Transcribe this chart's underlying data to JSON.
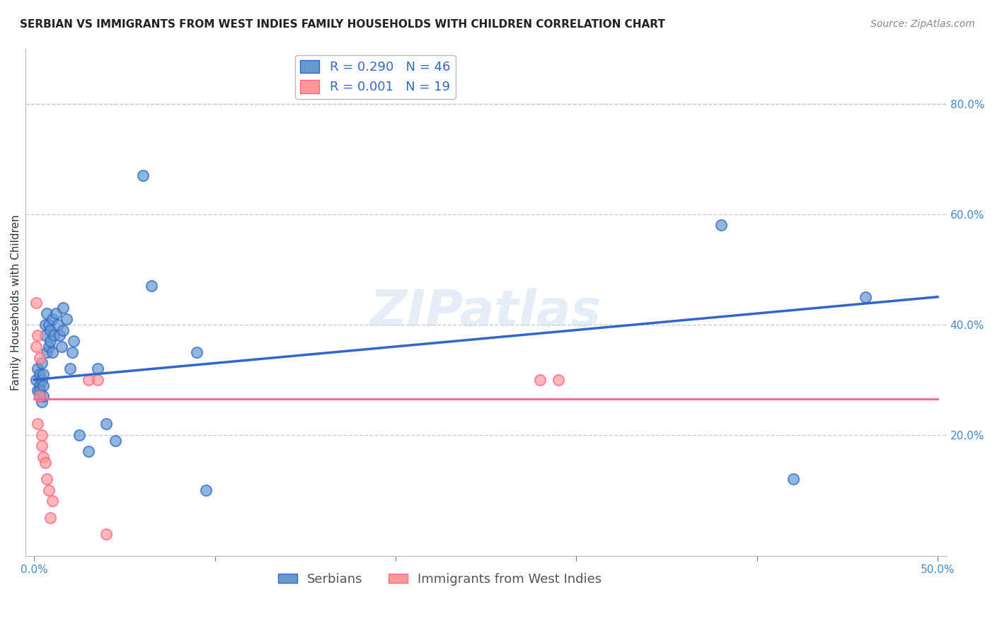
{
  "title": "SERBIAN VS IMMIGRANTS FROM WEST INDIES FAMILY HOUSEHOLDS WITH CHILDREN CORRELATION CHART",
  "source": "Source: ZipAtlas.com",
  "xlabel": "",
  "ylabel": "Family Households with Children",
  "xlim": [
    0.0,
    0.5
  ],
  "ylim": [
    -0.02,
    0.9
  ],
  "xticks": [
    0.0,
    0.1,
    0.2,
    0.3,
    0.4,
    0.5
  ],
  "xtick_labels": [
    "0.0%",
    "",
    "",
    "",
    "",
    "50.0%"
  ],
  "ytick_labels_right": [
    "20.0%",
    "40.0%",
    "60.0%",
    "80.0%"
  ],
  "yticks_right": [
    0.2,
    0.4,
    0.6,
    0.8
  ],
  "serbian_R": 0.29,
  "serbian_N": 46,
  "west_indies_R": 0.001,
  "west_indies_N": 19,
  "serbian_color": "#6699CC",
  "west_indies_color": "#FF9999",
  "serbian_line_color": "#3366CC",
  "west_indies_line_color": "#FF6688",
  "background_color": "#FFFFFF",
  "watermark": "ZIPatlas",
  "serbian_x": [
    0.001,
    0.002,
    0.002,
    0.003,
    0.003,
    0.003,
    0.003,
    0.004,
    0.004,
    0.004,
    0.005,
    0.005,
    0.005,
    0.006,
    0.006,
    0.007,
    0.007,
    0.008,
    0.008,
    0.009,
    0.009,
    0.01,
    0.01,
    0.011,
    0.012,
    0.013,
    0.014,
    0.015,
    0.016,
    0.016,
    0.018,
    0.02,
    0.021,
    0.022,
    0.025,
    0.03,
    0.035,
    0.04,
    0.045,
    0.06,
    0.065,
    0.09,
    0.095,
    0.38,
    0.42,
    0.46
  ],
  "serbian_y": [
    0.3,
    0.28,
    0.32,
    0.29,
    0.27,
    0.31,
    0.28,
    0.3,
    0.26,
    0.33,
    0.31,
    0.29,
    0.27,
    0.4,
    0.38,
    0.42,
    0.35,
    0.4,
    0.36,
    0.39,
    0.37,
    0.41,
    0.35,
    0.38,
    0.42,
    0.4,
    0.38,
    0.36,
    0.43,
    0.39,
    0.41,
    0.32,
    0.35,
    0.37,
    0.2,
    0.17,
    0.32,
    0.22,
    0.19,
    0.67,
    0.47,
    0.35,
    0.1,
    0.58,
    0.12,
    0.45
  ],
  "wi_x": [
    0.001,
    0.001,
    0.002,
    0.002,
    0.003,
    0.003,
    0.004,
    0.004,
    0.005,
    0.006,
    0.007,
    0.008,
    0.009,
    0.01,
    0.03,
    0.035,
    0.04,
    0.28,
    0.29
  ],
  "wi_y": [
    0.44,
    0.36,
    0.38,
    0.22,
    0.34,
    0.27,
    0.2,
    0.18,
    0.16,
    0.15,
    0.12,
    0.1,
    0.05,
    0.08,
    0.3,
    0.3,
    0.02,
    0.3,
    0.3
  ],
  "serbian_trend_x": [
    0.0,
    0.5
  ],
  "serbian_trend_y": [
    0.3,
    0.45
  ],
  "wi_trend_x": [
    0.0,
    0.5
  ],
  "wi_trend_y": [
    0.265,
    0.265
  ],
  "grid_color": "#CCCCCC",
  "grid_style": "--",
  "title_fontsize": 11,
  "axis_label_fontsize": 11,
  "tick_fontsize": 11,
  "legend_fontsize": 13,
  "source_fontsize": 10
}
